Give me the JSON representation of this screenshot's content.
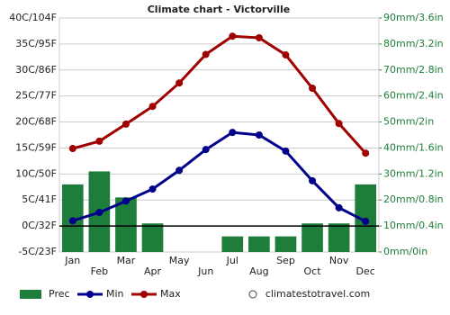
{
  "chart_data": {
    "type": "climate",
    "title": "Climate chart - Victorville",
    "categories": [
      "Jan",
      "Feb",
      "Mar",
      "Apr",
      "May",
      "Jun",
      "Jul",
      "Aug",
      "Sep",
      "Oct",
      "Nov",
      "Dec"
    ],
    "series": [
      {
        "name": "Prec",
        "color": "#1e7d3a",
        "axis": "y2",
        "kind": "bar",
        "values": [
          26,
          31,
          21,
          11,
          0,
          0,
          6,
          6,
          6,
          11,
          11,
          26
        ]
      },
      {
        "name": "Min",
        "color": "#00008b",
        "kind": "line",
        "values": [
          1,
          2.6,
          4.8,
          7.1,
          10.7,
          14.7,
          18,
          17.5,
          14.4,
          8.7,
          3.5,
          0.9
        ]
      },
      {
        "name": "Max",
        "color": "#a00000",
        "kind": "line",
        "values": [
          14.9,
          16.3,
          19.6,
          23,
          27.5,
          33,
          36.5,
          36.2,
          32.9,
          26.5,
          19.7,
          14
        ]
      }
    ],
    "ylim": [
      -5,
      40
    ],
    "yticks": [
      {
        "value": -5,
        "label": "-5C/23F"
      },
      {
        "value": 0,
        "label": "0C/32F"
      },
      {
        "value": 5,
        "label": "5C/41F"
      },
      {
        "value": 10,
        "label": "10C/50F"
      },
      {
        "value": 15,
        "label": "15C/59F"
      },
      {
        "value": 20,
        "label": "20C/68F"
      },
      {
        "value": 25,
        "label": "25C/77F"
      },
      {
        "value": 30,
        "label": "30C/86F"
      },
      {
        "value": 35,
        "label": "35C/95F"
      },
      {
        "value": 40,
        "label": "40C/104F"
      }
    ],
    "y2lim": [
      0,
      90
    ],
    "y2ticks": [
      {
        "value": 0,
        "label": "0mm/0in"
      },
      {
        "value": 10,
        "label": "10mm/0.4in"
      },
      {
        "value": 20,
        "label": "20mm/0.8in"
      },
      {
        "value": 30,
        "label": "30mm/1.2in"
      },
      {
        "value": 40,
        "label": "40mm/1.6in"
      },
      {
        "value": 50,
        "label": "50mm/2in"
      },
      {
        "value": 60,
        "label": "60mm/2.4in"
      },
      {
        "value": 70,
        "label": "70mm/2.8in"
      },
      {
        "value": 80,
        "label": "80mm/3.2in"
      },
      {
        "value": 90,
        "label": "90mm/3.6in"
      }
    ],
    "grid": true,
    "source": "climatestotravel.com"
  }
}
